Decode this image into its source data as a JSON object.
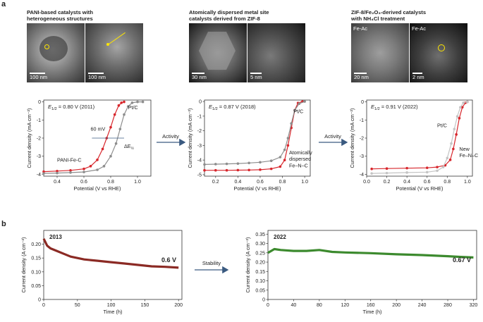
{
  "panel_a_label": "a",
  "panel_b_label": "b",
  "headers": {
    "h1_line1": "PANI-based catalysts with",
    "h1_line2": "heterogeneous structures",
    "h2_line1": "Atomically dispersed metal site",
    "h2_line2": "catalysts derived from ZIF-8",
    "h3_line1": "ZIF-8/Fe₂O₃-derived catalysts",
    "h3_line2": "with NH₄Cl treatment"
  },
  "micrographs": {
    "m1_scale": "100 nm",
    "m2_scale": "100 nm",
    "m3_scale": "30 nm",
    "m4_scale": "5 nm",
    "m5_scale": "20 nm",
    "m5_tag": "Fe-Ac",
    "m6_scale": "2 nm",
    "m6_tag": "Fe-Ac"
  },
  "arrows": {
    "a1": "Activity",
    "a2": "Activity",
    "b1": "Stability"
  },
  "chart_data": [
    {
      "type": "line",
      "id": "lsv1",
      "annotation_main": "E",
      "annotation_sub": "1/2",
      "annotation_rest": " = 0.80 V (2011)",
      "xlabel": "Potential (V vs RHE)",
      "ylabel": "Current density (mA cm⁻²)",
      "xlim": [
        0.3,
        1.1
      ],
      "ylim": [
        -4.1,
        0.1
      ],
      "xticks": [
        "0.4",
        "0.6",
        "0.8",
        "1.0"
      ],
      "yticks": [
        "0",
        "-1",
        "-2",
        "-3",
        "-4"
      ],
      "inline_labels": {
        "pt": "Pt/C",
        "sample": "PANI-Fe-C",
        "shift": "60 mV",
        "delta_main": "ΔE",
        "delta_sub": "½"
      },
      "series": [
        {
          "name": "PANI-Fe-C",
          "color": "#d7262c",
          "x": [
            0.3,
            0.4,
            0.5,
            0.6,
            0.65,
            0.7,
            0.74,
            0.77,
            0.8,
            0.83,
            0.86,
            0.88,
            0.9
          ],
          "y": [
            -3.85,
            -3.82,
            -3.78,
            -3.7,
            -3.55,
            -3.2,
            -2.6,
            -2.0,
            -1.4,
            -0.7,
            -0.2,
            -0.05,
            0.0
          ]
        },
        {
          "name": "Pt/C",
          "color": "#8d8d8d",
          "x": [
            0.3,
            0.4,
            0.5,
            0.6,
            0.7,
            0.75,
            0.8,
            0.84,
            0.87,
            0.9,
            0.93,
            0.96,
            1.0,
            1.04
          ],
          "y": [
            -3.95,
            -3.93,
            -3.9,
            -3.87,
            -3.75,
            -3.55,
            -3.0,
            -2.3,
            -1.5,
            -0.7,
            -0.25,
            -0.05,
            0.0,
            0.0
          ]
        }
      ]
    },
    {
      "type": "line",
      "id": "lsv2",
      "annotation_main": "E",
      "annotation_sub": "1/2",
      "annotation_rest": " = 0.87 V (2018)",
      "xlabel": "Potential (V vs RHE)",
      "ylabel": "Current density (mA cm⁻²)",
      "xlim": [
        0.1,
        1.05
      ],
      "ylim": [
        -5.1,
        0.1
      ],
      "xticks": [
        "0.2",
        "0.4",
        "0.6",
        "0.8",
        "1.0"
      ],
      "yticks": [
        "0",
        "-1",
        "-2",
        "-3",
        "-4",
        "-5"
      ],
      "inline_labels": {
        "pt": "Pt/C",
        "sample_l1": "Atomically",
        "sample_l2": "dispersed",
        "sample_l3": "Fe–N–C"
      },
      "series": [
        {
          "name": "Fe–N–C",
          "color": "#d7262c",
          "x": [
            0.1,
            0.2,
            0.3,
            0.4,
            0.5,
            0.6,
            0.7,
            0.78,
            0.82,
            0.85,
            0.88,
            0.91,
            0.94,
            0.98
          ],
          "y": [
            -4.7,
            -4.7,
            -4.7,
            -4.69,
            -4.68,
            -4.66,
            -4.6,
            -4.45,
            -4.0,
            -3.0,
            -1.8,
            -0.6,
            -0.1,
            0.0
          ]
        },
        {
          "name": "Pt/C",
          "color": "#8d8d8d",
          "x": [
            0.1,
            0.2,
            0.3,
            0.4,
            0.5,
            0.6,
            0.7,
            0.78,
            0.82,
            0.85,
            0.88,
            0.91,
            0.95,
            1.0
          ],
          "y": [
            -4.3,
            -4.28,
            -4.26,
            -4.24,
            -4.2,
            -4.15,
            -4.05,
            -3.8,
            -3.3,
            -2.5,
            -1.5,
            -0.6,
            -0.15,
            0.0
          ]
        }
      ]
    },
    {
      "type": "line",
      "id": "lsv3",
      "annotation_main": "E",
      "annotation_sub": "1/2",
      "annotation_rest": " = 0.91 V (2022)",
      "xlabel": "Potential (V vs RHE)",
      "ylabel": "Current density (mA cm⁻²)",
      "xlim": [
        0.0,
        1.05
      ],
      "ylim": [
        -4.1,
        0.1
      ],
      "xticks": [
        "0.0",
        "0.2",
        "0.4",
        "0.6",
        "0.8",
        "1.0"
      ],
      "yticks": [
        "0",
        "-1",
        "-2",
        "-3",
        "-4"
      ],
      "inline_labels": {
        "pt": "Pt/C",
        "sample_l1": "New",
        "sample_l2": "Fe–N–C"
      },
      "series": [
        {
          "name": "New Fe–N–C",
          "color": "#d7262c",
          "x": [
            0.05,
            0.2,
            0.4,
            0.6,
            0.7,
            0.78,
            0.83,
            0.86,
            0.89,
            0.92,
            0.95,
            0.98,
            1.0
          ],
          "y": [
            -3.7,
            -3.68,
            -3.66,
            -3.64,
            -3.6,
            -3.5,
            -3.2,
            -2.6,
            -1.8,
            -0.9,
            -0.3,
            -0.05,
            0.0
          ]
        },
        {
          "name": "Pt/C",
          "color": "#c4c4c4",
          "x": [
            0.05,
            0.2,
            0.4,
            0.6,
            0.7,
            0.76,
            0.8,
            0.84,
            0.87,
            0.9,
            0.93,
            0.96,
            1.0
          ],
          "y": [
            -3.95,
            -3.93,
            -3.9,
            -3.88,
            -3.8,
            -3.6,
            -3.1,
            -2.3,
            -1.5,
            -0.8,
            -0.3,
            -0.05,
            0.0
          ]
        }
      ]
    },
    {
      "type": "line",
      "id": "stab1",
      "year": "2013",
      "voltage": "0.6 V",
      "xlabel": "Time (h)",
      "ylabel": "Current density (A cm⁻²)",
      "xlim": [
        0,
        205
      ],
      "ylim": [
        0,
        0.25
      ],
      "xticks": [
        "0",
        "50",
        "100",
        "150",
        "200"
      ],
      "yticks": [
        "0",
        "0.05",
        "0.10",
        "0.15",
        "0.20"
      ],
      "series": [
        {
          "name": "",
          "color": "#8b2a24",
          "x": [
            0,
            5,
            10,
            20,
            30,
            40,
            50,
            60,
            80,
            100,
            120,
            140,
            160,
            180,
            200
          ],
          "y": [
            0.22,
            0.195,
            0.185,
            0.175,
            0.165,
            0.155,
            0.15,
            0.145,
            0.14,
            0.135,
            0.13,
            0.125,
            0.12,
            0.118,
            0.115
          ]
        }
      ]
    },
    {
      "type": "line",
      "id": "stab2",
      "year": "2022",
      "voltage": "0.67 V",
      "xlabel": "Time (h)",
      "ylabel": "Current density (A cm⁻²)",
      "xlim": [
        0,
        325
      ],
      "ylim": [
        0,
        0.37
      ],
      "xticks": [
        "0",
        "40",
        "80",
        "120",
        "160",
        "200",
        "240",
        "280",
        "320"
      ],
      "yticks": [
        "0",
        "0.05",
        "0.10",
        "0.15",
        "0.20",
        "0.25",
        "0.30",
        "0.35"
      ],
      "series": [
        {
          "name": "",
          "color": "#3c8a2e",
          "x": [
            0,
            10,
            20,
            40,
            60,
            80,
            100,
            120,
            160,
            200,
            240,
            280,
            300,
            320
          ],
          "y": [
            0.25,
            0.27,
            0.265,
            0.26,
            0.26,
            0.265,
            0.255,
            0.252,
            0.248,
            0.242,
            0.238,
            0.232,
            0.228,
            0.225
          ]
        }
      ]
    }
  ]
}
